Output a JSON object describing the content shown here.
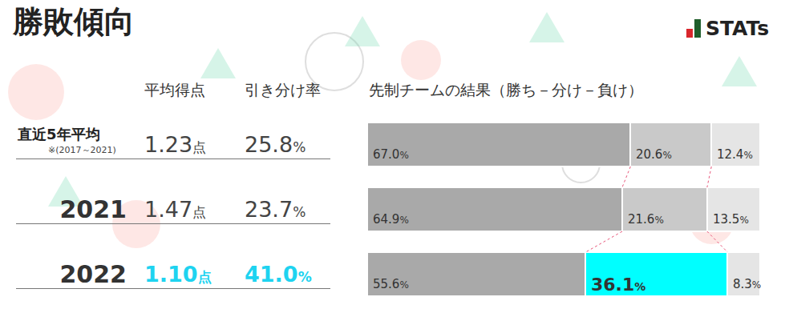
{
  "header": {
    "title": "勝敗傾向",
    "logo": "STATs"
  },
  "table": {
    "columns": [
      "平均得点",
      "引き分け率"
    ],
    "rows": [
      {
        "note": "※(2017～2021)",
        "cells": [
          "1.23点",
          "25.8%"
        ]
      },
      {
        "cells": [
          "1.47点",
          "23.7%"
        ]
      },
      {
        "cells": [
          "1.10点",
          "41.0%"
        ],
        "color": "#1ed3f0"
      }
    ]
  },
  "chart_data": {
    "type": "bar",
    "title": "先制チームの結果（勝ち－分け－負け）",
    "orientation": "horizontal",
    "stacked": true,
    "data_labels": true,
    "tick_labels": false,
    "grid": false,
    "categories": [
      "直近5年平均",
      "2021",
      "2022"
    ],
    "xlim": [
      0,
      100
    ],
    "series": [
      {
        "values": [
          67.0,
          64.9,
          55.6
        ],
        "value_labels": [
          "67.0%",
          "64.9%",
          "55.6%"
        ],
        "color": "#a9a9a9"
      },
      {
        "values": [
          20.6,
          21.6,
          36.1
        ],
        "value_labels": [
          "20.6%",
          "21.6%",
          "36.1%"
        ],
        "colors": [
          "#c9c9c9",
          "#c9c9c9",
          "#00ffff"
        ]
      },
      {
        "values": [
          12.4,
          13.5,
          8.3
        ],
        "value_labels": [
          "12.4%",
          "13.5%",
          "8.3%"
        ],
        "color": "#e5e5e5"
      }
    ]
  }
}
